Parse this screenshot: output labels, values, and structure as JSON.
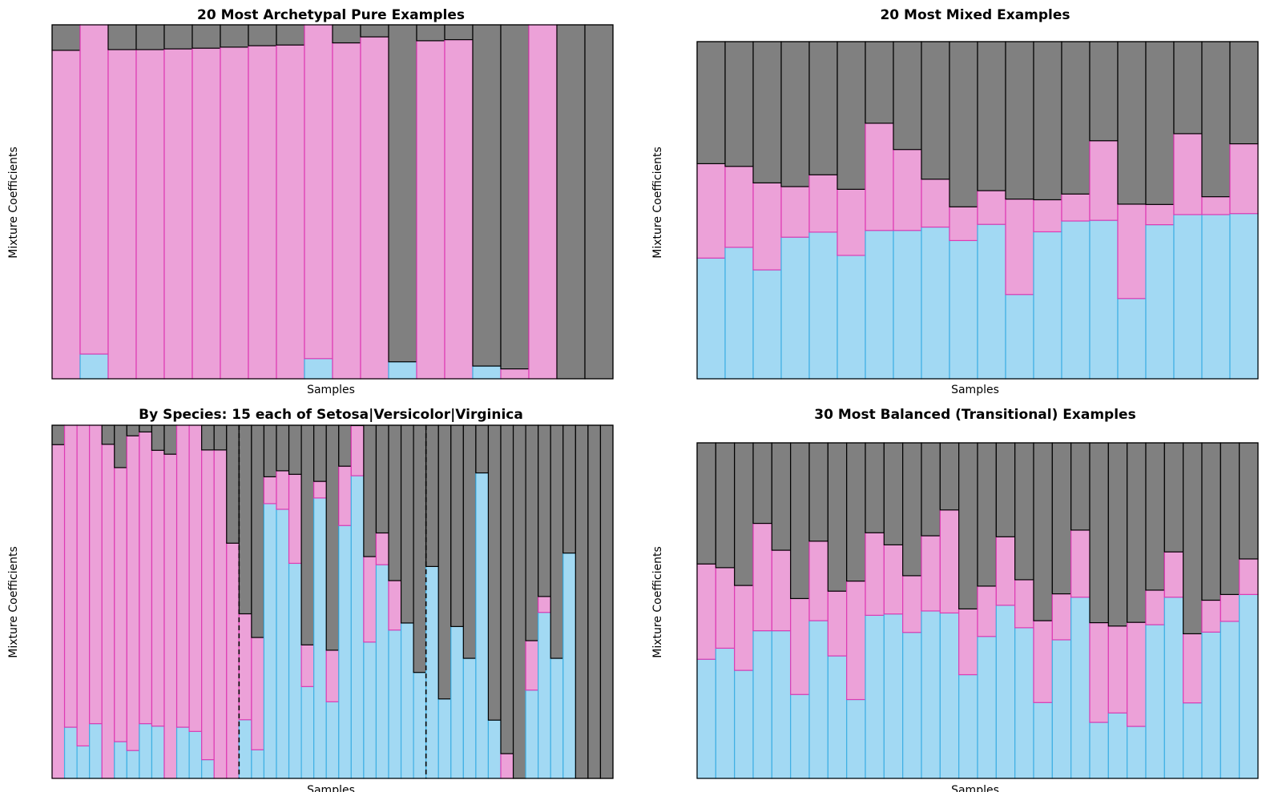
{
  "colors": {
    "c0": "#a2d9f3",
    "c0_edge": "#3fb0e4",
    "c1": "#eca1d8",
    "c1_edge": "#de3bb4",
    "c2": "#808080",
    "c2_edge": "#000000"
  },
  "chart_data": [
    {
      "type": "bar",
      "stacked": true,
      "title": "20 Most Archetypal Pure Examples",
      "xlabel": "Samples",
      "ylabel": "Mixture Coefficients",
      "ylim": [
        0,
        1
      ],
      "series": [
        {
          "values": [
            0.0,
            0.07,
            0.0,
            0.0,
            0.0,
            0.0,
            0.0,
            0.0,
            0.0,
            0.057,
            0.0,
            0.0,
            0.048,
            0.0,
            0.0,
            0.036,
            0.0,
            0.0,
            0.0,
            0.0
          ]
        },
        {
          "values": [
            0.928,
            0.93,
            0.93,
            0.93,
            0.932,
            0.934,
            0.937,
            0.941,
            0.943,
            0.943,
            0.949,
            0.966,
            0.0,
            0.955,
            0.958,
            0.0,
            0.028,
            1.0,
            0.0,
            0.0
          ]
        },
        {
          "values": [
            0.072,
            0.0,
            0.07,
            0.07,
            0.068,
            0.066,
            0.063,
            0.059,
            0.057,
            0.0,
            0.051,
            0.034,
            0.952,
            0.045,
            0.042,
            0.964,
            0.972,
            0.0,
            1.0,
            1.0
          ]
        }
      ]
    },
    {
      "type": "bar",
      "stacked": true,
      "title": "20 Most Mixed Examples",
      "xlabel": "Samples",
      "ylabel": "Mixture Coefficients",
      "ylim": [
        0,
        1
      ],
      "series": [
        {
          "values": [
            0.358,
            0.39,
            0.323,
            0.42,
            0.435,
            0.366,
            0.44,
            0.44,
            0.45,
            0.41,
            0.458,
            0.25,
            0.436,
            0.468,
            0.47,
            0.238,
            0.457,
            0.487,
            0.487,
            0.49
          ]
        },
        {
          "values": [
            0.28,
            0.24,
            0.258,
            0.15,
            0.17,
            0.196,
            0.318,
            0.24,
            0.142,
            0.1,
            0.1,
            0.283,
            0.095,
            0.08,
            0.236,
            0.28,
            0.06,
            0.24,
            0.053,
            0.207
          ]
        },
        {
          "values": [
            0.362,
            0.37,
            0.419,
            0.43,
            0.395,
            0.438,
            0.242,
            0.32,
            0.408,
            0.49,
            0.442,
            0.467,
            0.469,
            0.452,
            0.294,
            0.482,
            0.483,
            0.273,
            0.46,
            0.303
          ]
        }
      ]
    },
    {
      "type": "bar",
      "stacked": true,
      "title": "By Species: 15 each of Setosa|Versicolor|Virginica",
      "xlabel": "Samples",
      "ylabel": "Mixture Coefficients",
      "ylim": [
        0,
        1
      ],
      "group_separators_after": [
        15,
        30
      ],
      "series": [
        {
          "values": [
            0.0,
            0.145,
            0.092,
            0.155,
            0.0,
            0.104,
            0.079,
            0.155,
            0.148,
            0.0,
            0.145,
            0.133,
            0.053,
            0.0,
            0.0,
            0.166,
            0.081,
            0.778,
            0.762,
            0.609,
            0.26,
            0.794,
            0.217,
            0.716,
            0.857,
            0.386,
            0.605,
            0.42,
            0.44,
            0.3,
            0.6,
            0.225,
            0.43,
            0.34,
            0.865,
            0.165,
            0.0,
            0.0,
            0.25,
            0.47,
            0.34,
            0.638,
            0.0,
            0.0,
            0.0
          ]
        },
        {
          "values": [
            0.945,
            0.855,
            0.908,
            0.845,
            0.946,
            0.776,
            0.891,
            0.826,
            0.781,
            0.918,
            0.855,
            0.867,
            0.877,
            0.93,
            0.666,
            0.3,
            0.318,
            0.076,
            0.109,
            0.252,
            0.118,
            0.047,
            0.146,
            0.168,
            0.142,
            0.242,
            0.09,
            0.14,
            0.0,
            0.0,
            0.0,
            0.0,
            0.0,
            0.0,
            0.0,
            0.0,
            0.07,
            0.0,
            0.14,
            0.045,
            0.0,
            0.0,
            0.0,
            0.0,
            0.0
          ]
        },
        {
          "values": [
            0.055,
            0.0,
            0.0,
            0.0,
            0.054,
            0.12,
            0.03,
            0.019,
            0.071,
            0.082,
            0.0,
            0.0,
            0.07,
            0.07,
            0.334,
            0.534,
            0.601,
            0.146,
            0.129,
            0.139,
            0.622,
            0.159,
            0.637,
            0.116,
            0.001,
            0.372,
            0.305,
            0.44,
            0.56,
            0.7,
            0.4,
            0.775,
            0.57,
            0.66,
            0.135,
            0.835,
            0.93,
            1.0,
            0.61,
            0.485,
            0.66,
            0.362,
            1.0,
            1.0,
            1.0
          ]
        }
      ]
    },
    {
      "type": "bar",
      "stacked": true,
      "title": "30 Most Balanced (Transitional) Examples",
      "xlabel": "Samples",
      "ylabel": "Mixture Coefficients",
      "ylim": [
        0,
        1
      ],
      "series": [
        {
          "values": [
            0.355,
            0.388,
            0.322,
            0.44,
            0.44,
            0.25,
            0.47,
            0.365,
            0.235,
            0.486,
            0.49,
            0.435,
            0.499,
            0.493,
            0.309,
            0.423,
            0.516,
            0.449,
            0.226,
            0.413,
            0.54,
            0.167,
            0.195,
            0.155,
            0.458,
            0.54,
            0.225,
            0.436,
            0.468,
            0.548
          ]
        },
        {
          "values": [
            0.284,
            0.24,
            0.253,
            0.32,
            0.24,
            0.286,
            0.237,
            0.193,
            0.353,
            0.246,
            0.206,
            0.169,
            0.224,
            0.307,
            0.196,
            0.15,
            0.204,
            0.143,
            0.244,
            0.137,
            0.2,
            0.297,
            0.259,
            0.31,
            0.103,
            0.135,
            0.206,
            0.095,
            0.08,
            0.106
          ]
        },
        {
          "values": [
            0.361,
            0.372,
            0.425,
            0.24,
            0.32,
            0.464,
            0.293,
            0.442,
            0.412,
            0.268,
            0.304,
            0.396,
            0.277,
            0.2,
            0.495,
            0.427,
            0.28,
            0.408,
            0.53,
            0.45,
            0.26,
            0.536,
            0.546,
            0.535,
            0.439,
            0.325,
            0.569,
            0.469,
            0.452,
            0.346
          ]
        }
      ]
    }
  ]
}
